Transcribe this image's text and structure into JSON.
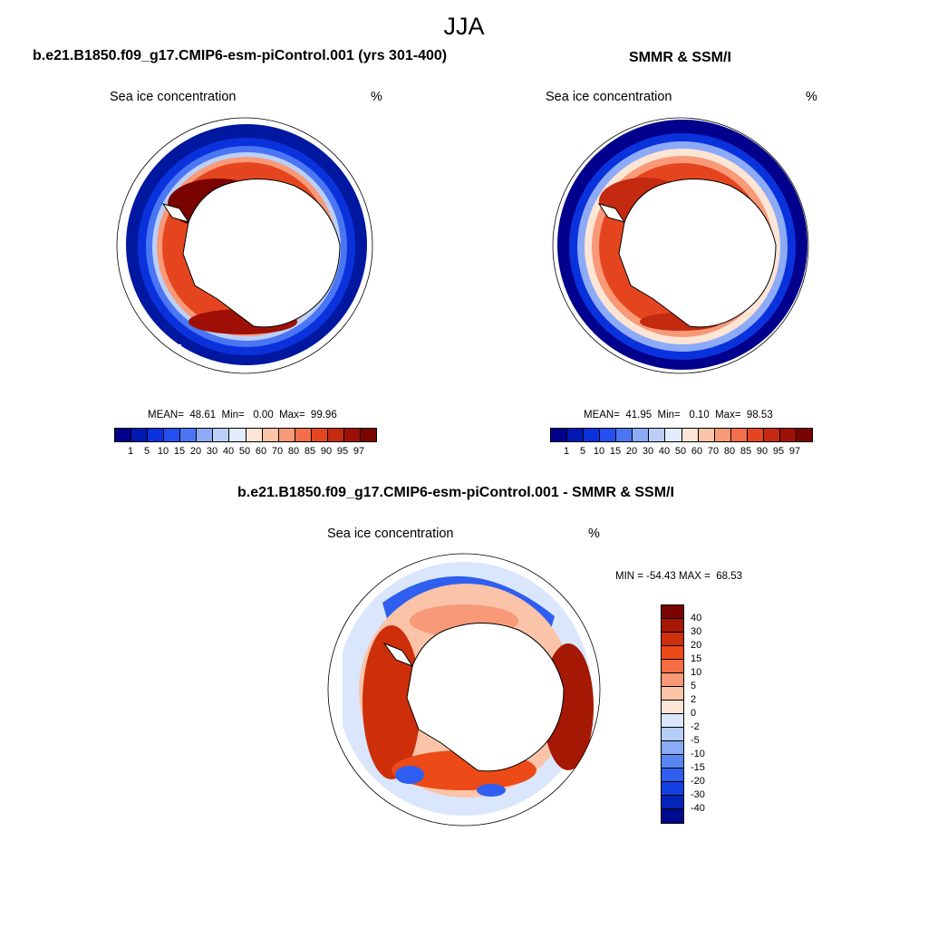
{
  "header": {
    "title": "JJA"
  },
  "panels": {
    "model": {
      "title": "b.e21.B1850.f09_g17.CMIP6-esm-piControl.001 (yrs 301-400)",
      "subtitle_left": "Sea ice concentration",
      "subtitle_right": "%",
      "stats": "MEAN=  48.61  Min=   0.00  Max=  99.96",
      "mean": 48.61,
      "min": 0.0,
      "max": 99.96
    },
    "obs": {
      "title": "SMMR & SSM/I",
      "subtitle_left": "Sea ice concentration",
      "subtitle_right": "%",
      "stats": "MEAN=  41.95  Min=   0.10  Max=  98.53",
      "mean": 41.95,
      "min": 0.1,
      "max": 98.53
    },
    "diff": {
      "title": "b.e21.B1850.f09_g17.CMIP6-esm-piControl.001 - SMMR & SSM/I",
      "subtitle_left": "Sea ice concentration",
      "subtitle_right": "%",
      "minmax": "MIN = -54.43 MAX =  68.53",
      "min": -54.43,
      "max": 68.53
    }
  },
  "colorbar_conc": {
    "labels": [
      "1",
      "5",
      "10",
      "15",
      "20",
      "30",
      "40",
      "50",
      "60",
      "70",
      "80",
      "85",
      "90",
      "95",
      "97"
    ],
    "colors": [
      "#00008c",
      "#0019b4",
      "#0a32dc",
      "#2450f0",
      "#4a76f4",
      "#8caaf6",
      "#bccff9",
      "#e3ecfc",
      "#fde5d6",
      "#fbc3a8",
      "#f89a78",
      "#f36e4b",
      "#e5451e",
      "#c42a10",
      "#9e1005",
      "#7a0400"
    ]
  },
  "colorbar_diff": {
    "labels": [
      "40",
      "30",
      "20",
      "15",
      "10",
      "5",
      "2",
      "0",
      "-2",
      "-5",
      "-10",
      "-15",
      "-20",
      "-30",
      "-40"
    ],
    "colors": [
      "#7a0400",
      "#a51804",
      "#cc2f0a",
      "#ec4a16",
      "#f66e42",
      "#f89a78",
      "#fbc3a8",
      "#fde6d8",
      "#dae6fb",
      "#b6cdf8",
      "#8aabf5",
      "#5a86f2",
      "#2f5ff0",
      "#1240e0",
      "#0524b8",
      "#000a8c"
    ]
  }
}
